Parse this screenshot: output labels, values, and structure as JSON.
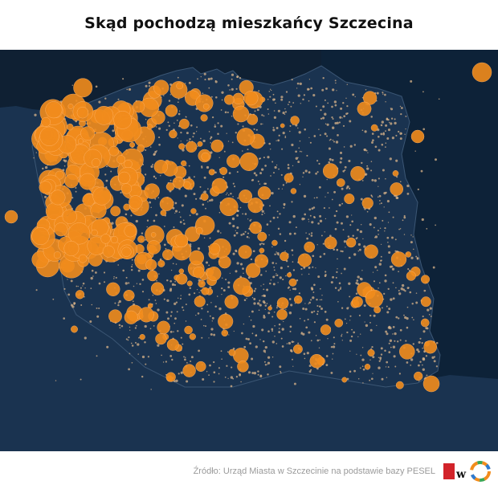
{
  "title": "Skąd pochodzą mieszkańcy Szczecina",
  "source": "Źródło: Urząd Miasta w Szczecinie na podstawie bazy PESEL",
  "colors": {
    "background": "#ffffff",
    "sea": "#0f2033",
    "land": "#1a3350",
    "border": "#3b5674",
    "bubble": "#f28c1c",
    "dot": "#d9b48a",
    "logo_red": "#d2232a"
  },
  "logo": {
    "letter": "w"
  }
}
